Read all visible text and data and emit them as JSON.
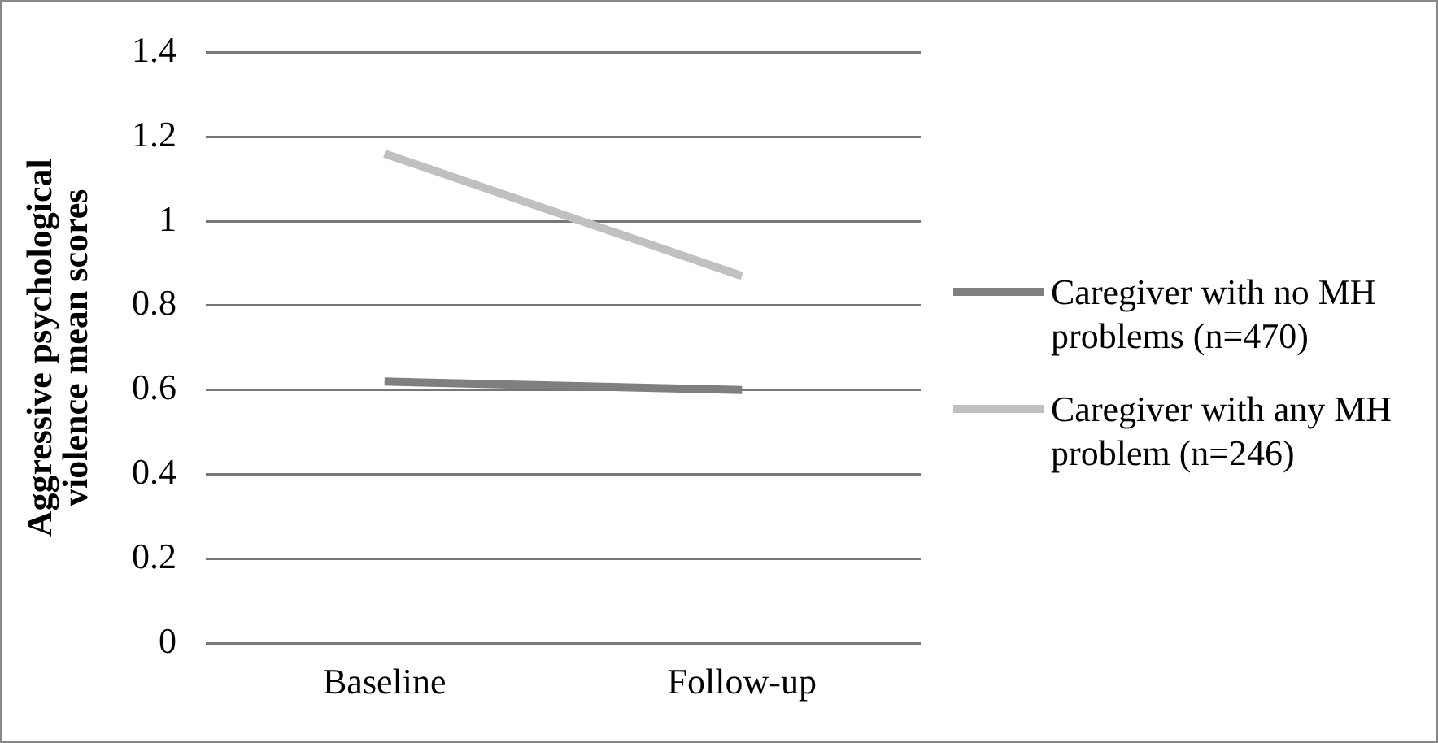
{
  "chart_data": {
    "type": "line",
    "ylabel": "Aggressive psychological violence mean scores",
    "categories": [
      "Baseline",
      "Follow-up"
    ],
    "series": [
      {
        "name": "Caregiver with no MH problems (n=470)",
        "color": "#7f7f7f",
        "values": [
          0.62,
          0.6
        ]
      },
      {
        "name": "Caregiver with any MH problem (n=246)",
        "color": "#c0c0c0",
        "values": [
          1.16,
          0.87
        ]
      }
    ],
    "ylim": [
      0,
      1.4
    ],
    "yticks": [
      0,
      0.2,
      0.4,
      0.6,
      0.8,
      1,
      1.2,
      1.4
    ],
    "grid": "y",
    "legend": "right",
    "marker": "none"
  }
}
